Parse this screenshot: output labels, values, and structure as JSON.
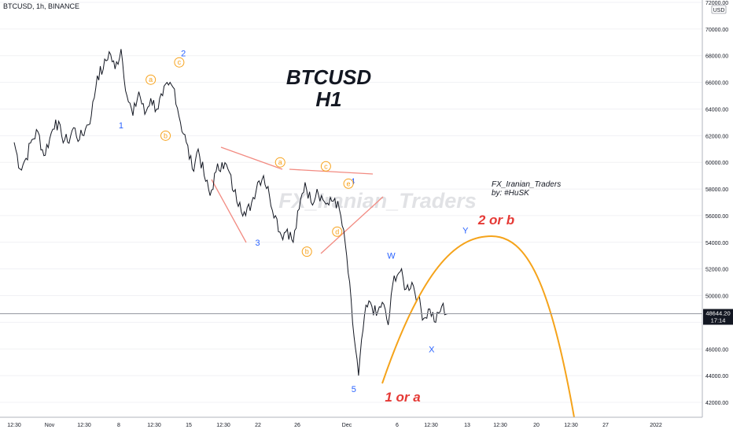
{
  "symbol_line": "BTCUSD, 1h, BINANCE",
  "currency_badge": "USD",
  "chart_title_line1": "BTCUSD",
  "chart_title_line2": "H1",
  "watermark": "FX_Iranian_Traders",
  "author_line1": "FX_Iranian_Traders",
  "author_line2": "by: #HuSK",
  "projection_label_top": "2 or b",
  "projection_label_bottom": "1 or a",
  "colors": {
    "price": "#131722",
    "wave_blue": "#2962ff",
    "wave_orange": "#f7a21b",
    "projection_red": "#e53935",
    "trendline": "#f28b82",
    "projection_curve": "#f5a31a",
    "grid": "#b2b5be"
  },
  "chart_data": {
    "type": "line",
    "title": "BTCUSD H1",
    "xlabel": "",
    "ylabel": "",
    "x_ticks": [
      "12:30",
      "Nov",
      "12:30",
      "8",
      "12:30",
      "15",
      "12:30",
      "22",
      "26",
      "Dec",
      "6",
      "12:30",
      "13",
      "12:30",
      "20",
      "12:30",
      "27",
      "2022"
    ],
    "y_ticks": [
      42000,
      44000,
      46000,
      48000,
      50000,
      52000,
      54000,
      56000,
      58000,
      60000,
      62000,
      64000,
      66000,
      68000,
      70000,
      72000
    ],
    "ylim": [
      41000,
      73000
    ],
    "y_tick_labels": [
      "42000.00",
      "44000.00",
      "46000.00",
      "48000.00",
      "50000.00",
      "52000.00",
      "54000.00",
      "56000.00",
      "58000.00",
      "60000.00",
      "62000.00",
      "64000.00",
      "66000.00",
      "68000.00",
      "70000.00",
      "72000.00"
    ],
    "last_price": 48644.2,
    "last_price_label": "48644.20",
    "countdown": "17:14",
    "price_path": [
      {
        "d": 0.0,
        "y": 61500
      },
      {
        "d": 1.0,
        "y": 59500
      },
      {
        "d": 2.0,
        "y": 60300
      },
      {
        "d": 3.0,
        "y": 61700
      },
      {
        "d": 4.0,
        "y": 62300
      },
      {
        "d": 5.0,
        "y": 60500
      },
      {
        "d": 6.0,
        "y": 61800
      },
      {
        "d": 7.0,
        "y": 63200
      },
      {
        "d": 8.0,
        "y": 62000
      },
      {
        "d": 9.0,
        "y": 61500
      },
      {
        "d": 10.0,
        "y": 62600
      },
      {
        "d": 11.0,
        "y": 61700
      },
      {
        "d": 12.0,
        "y": 62500
      },
      {
        "d": 13.0,
        "y": 63500
      },
      {
        "d": 14.0,
        "y": 66500
      },
      {
        "d": 15.0,
        "y": 67000
      },
      {
        "d": 16.0,
        "y": 68300
      },
      {
        "d": 17.0,
        "y": 67000
      },
      {
        "d": 18.0,
        "y": 68500
      },
      {
        "d": 19.0,
        "y": 65000
      },
      {
        "d": 20.0,
        "y": 63500
      },
      {
        "d": 21.0,
        "y": 65300
      },
      {
        "d": 22.0,
        "y": 63600
      },
      {
        "d": 23.0,
        "y": 64800
      },
      {
        "d": 24.0,
        "y": 64000
      },
      {
        "d": 25.0,
        "y": 65000
      },
      {
        "d": 26.0,
        "y": 65800
      },
      {
        "d": 27.0,
        "y": 65500
      },
      {
        "d": 28.0,
        "y": 63000
      },
      {
        "d": 29.0,
        "y": 61500
      },
      {
        "d": 30.0,
        "y": 59500
      },
      {
        "d": 31.0,
        "y": 61000
      },
      {
        "d": 32.0,
        "y": 59000
      },
      {
        "d": 33.0,
        "y": 57500
      },
      {
        "d": 34.0,
        "y": 59300
      },
      {
        "d": 35.0,
        "y": 60000
      },
      {
        "d": 36.0,
        "y": 59500
      },
      {
        "d": 37.0,
        "y": 57800
      },
      {
        "d": 38.0,
        "y": 57000
      },
      {
        "d": 39.0,
        "y": 56000
      },
      {
        "d": 40.0,
        "y": 57000
      },
      {
        "d": 41.0,
        "y": 58500
      },
      {
        "d": 42.0,
        "y": 59000
      },
      {
        "d": 43.0,
        "y": 57500
      },
      {
        "d": 44.0,
        "y": 56000
      },
      {
        "d": 45.0,
        "y": 54500
      },
      {
        "d": 46.0,
        "y": 55000
      },
      {
        "d": 47.0,
        "y": 54000
      },
      {
        "d": 48.0,
        "y": 56500
      },
      {
        "d": 49.0,
        "y": 58500
      },
      {
        "d": 50.0,
        "y": 57000
      },
      {
        "d": 51.0,
        "y": 58000
      },
      {
        "d": 52.0,
        "y": 57200
      },
      {
        "d": 53.0,
        "y": 56800
      },
      {
        "d": 54.0,
        "y": 57300
      },
      {
        "d": 55.0,
        "y": 56000
      },
      {
        "d": 56.0,
        "y": 53000
      },
      {
        "d": 57.0,
        "y": 48000
      },
      {
        "d": 58.0,
        "y": 44000
      },
      {
        "d": 59.0,
        "y": 48500
      },
      {
        "d": 60.0,
        "y": 49500
      },
      {
        "d": 61.0,
        "y": 48500
      },
      {
        "d": 62.0,
        "y": 49500
      },
      {
        "d": 63.0,
        "y": 47800
      },
      {
        "d": 64.0,
        "y": 51500
      },
      {
        "d": 65.0,
        "y": 51800
      },
      {
        "d": 66.0,
        "y": 50500
      },
      {
        "d": 67.0,
        "y": 51000
      },
      {
        "d": 68.0,
        "y": 49800
      },
      {
        "d": 69.0,
        "y": 48300
      },
      {
        "d": 70.0,
        "y": 49000
      },
      {
        "d": 71.0,
        "y": 48000
      },
      {
        "d": 72.0,
        "y": 49200
      },
      {
        "d": 73.0,
        "y": 48644
      }
    ],
    "wave_labels": [
      {
        "text": "1",
        "style": "blue",
        "d": 18.0,
        "y": 62800
      },
      {
        "text": "2",
        "style": "blue",
        "d": 28.5,
        "y": 68200
      },
      {
        "text": "3",
        "style": "blue",
        "d": 41.0,
        "y": 54000
      },
      {
        "text": "4",
        "style": "blue",
        "d": 57.0,
        "y": 58600
      },
      {
        "text": "5",
        "style": "blue",
        "d": 57.2,
        "y": 43000
      },
      {
        "text": "W",
        "style": "blue",
        "d": 63.5,
        "y": 53000
      },
      {
        "text": "X",
        "style": "blue",
        "d": 70.3,
        "y": 46000
      },
      {
        "text": "Y",
        "style": "blue",
        "d": 76.0,
        "y": 54900
      },
      {
        "text": "a",
        "style": "orange",
        "d": 23.0,
        "y": 66200
      },
      {
        "text": "b",
        "style": "orange",
        "d": 25.5,
        "y": 62000
      },
      {
        "text": "c",
        "style": "orange",
        "d": 27.8,
        "y": 67500
      },
      {
        "text": "a",
        "style": "orange",
        "d": 44.8,
        "y": 60000
      },
      {
        "text": "b",
        "style": "orange",
        "d": 49.3,
        "y": 53300
      },
      {
        "text": "c",
        "style": "orange",
        "d": 52.5,
        "y": 59700
      },
      {
        "text": "d",
        "style": "orange",
        "d": 54.4,
        "y": 54800
      },
      {
        "text": "e",
        "style": "orange",
        "d": 56.3,
        "y": 58400
      }
    ]
  }
}
